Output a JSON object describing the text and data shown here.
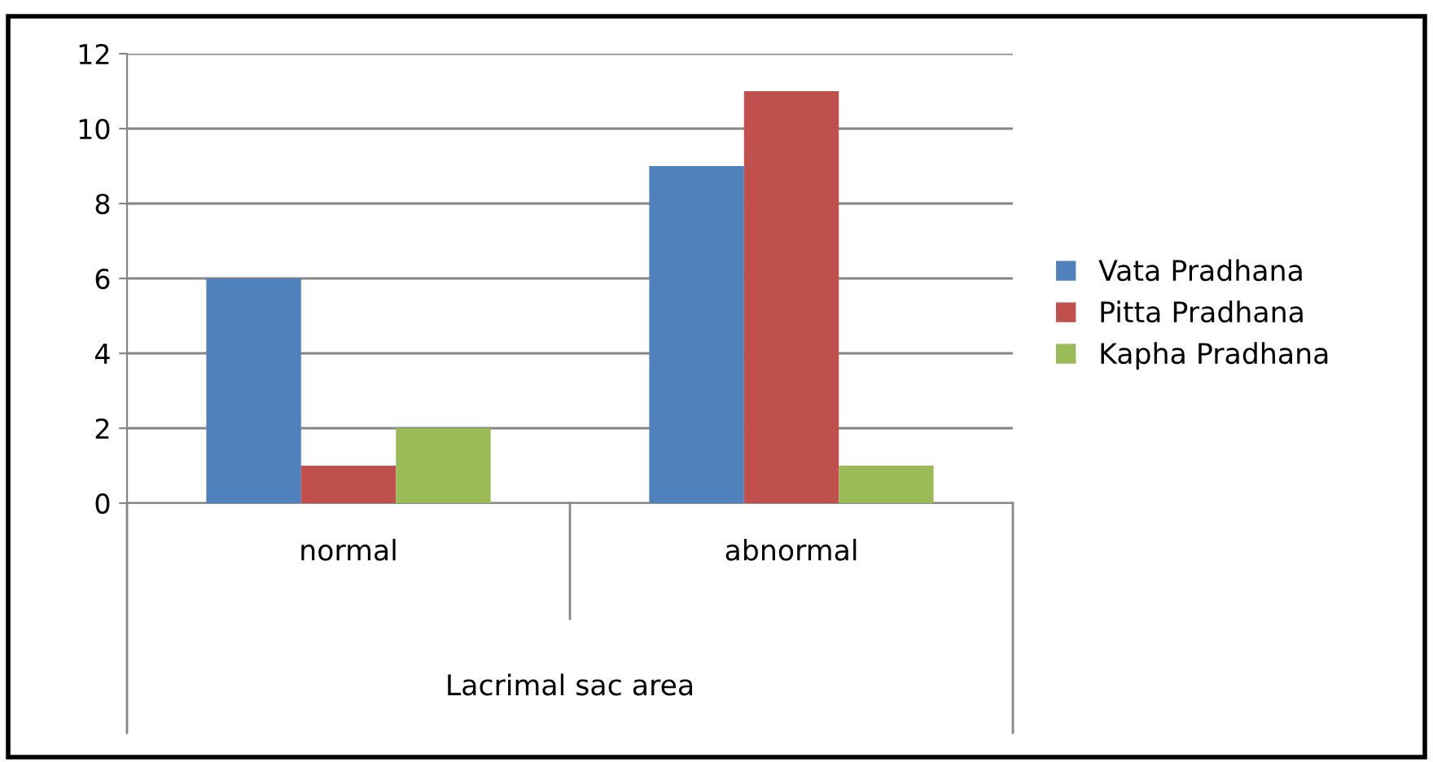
{
  "chart_data": {
    "type": "bar",
    "xlabel": "Lacrimal sac area",
    "categories": [
      "normal",
      "abnormal"
    ],
    "series": [
      {
        "name": "Vata Pradhana",
        "color": "#4f81bd",
        "values": [
          6,
          9
        ]
      },
      {
        "name": "Pitta Pradhana",
        "color": "#c0504d",
        "values": [
          1,
          11
        ]
      },
      {
        "name": "Kapha Pradhana",
        "color": "#9bbb59",
        "values": [
          2,
          1
        ]
      }
    ],
    "ylim": [
      0,
      12
    ],
    "yticks": [
      0,
      2,
      4,
      6,
      8,
      10,
      12
    ],
    "grid": "y",
    "legend": "right"
  }
}
